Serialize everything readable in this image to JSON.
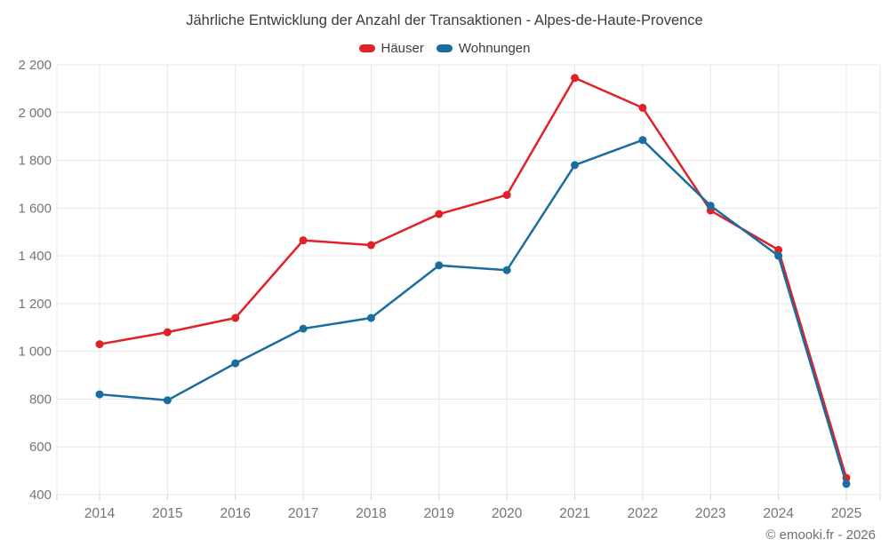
{
  "footer": {
    "copyright": "© emooki.fr - 2026"
  },
  "colors": {
    "haeuser_red": "#e02227",
    "wohnungen_blue": "#1b6d9f",
    "grid": "#e7e7e7",
    "tick": "#d2d2d2",
    "axis_text": "#757575",
    "title_text": "#3c3c3c"
  },
  "chart_data": {
    "type": "line",
    "title": "Jährliche Entwicklung der Anzahl der Transaktionen - Alpes-de-Haute-Provence",
    "categories": [
      "2014",
      "2015",
      "2016",
      "2017",
      "2018",
      "2019",
      "2020",
      "2021",
      "2022",
      "2023",
      "2024",
      "2025"
    ],
    "series": [
      {
        "name": "Häuser",
        "color": "#e02227",
        "values": [
          1030,
          1080,
          1140,
          1465,
          1445,
          1575,
          1655,
          2145,
          2020,
          1590,
          1425,
          470
        ]
      },
      {
        "name": "Wohnungen",
        "color": "#1b6d9f",
        "values": [
          820,
          795,
          950,
          1095,
          1140,
          1360,
          1340,
          1780,
          1885,
          1610,
          1400,
          445
        ]
      }
    ],
    "xlabel": "",
    "ylabel": "",
    "ylim": [
      400,
      2200
    ],
    "ytick_step": 200,
    "ytick_labels_top_to_bottom": [
      "2 200",
      "2 000",
      "1 800",
      "1 600",
      "1 400",
      "1 200",
      "1 000",
      "800",
      "600",
      "400"
    ],
    "grid": true,
    "legend_position": "top",
    "marker": "circle"
  }
}
